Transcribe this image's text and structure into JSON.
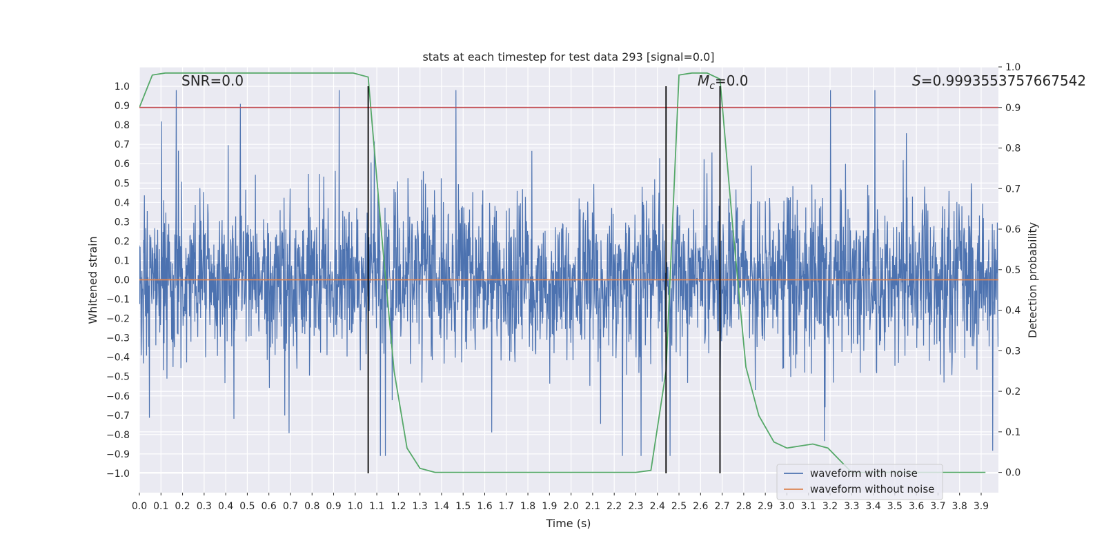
{
  "chart_data": {
    "type": "line",
    "title": "stats at each timestep for test data 293 [signal=0.0]",
    "xlabel": "Time (s)",
    "ylabel": "Whitened strain",
    "y2label": "Detection probability",
    "xlim": [
      0.0,
      3.98
    ],
    "ylim": [
      -1.1,
      1.1
    ],
    "y2lim": [
      -0.05,
      1.0
    ],
    "x_ticks": [
      0.0,
      0.1,
      0.2,
      0.3,
      0.4,
      0.5,
      0.6,
      0.7,
      0.8,
      0.9,
      1.0,
      1.1,
      1.2,
      1.3,
      1.4,
      1.5,
      1.6,
      1.7,
      1.8,
      1.9,
      2.0,
      2.1,
      2.2,
      2.3,
      2.4,
      2.5,
      2.6,
      2.7,
      2.8,
      2.9,
      3.0,
      3.1,
      3.2,
      3.3,
      3.4,
      3.5,
      3.6,
      3.7,
      3.8,
      3.9
    ],
    "x_tick_labels": [
      "0.0",
      "0.1",
      "0.2",
      "0.3",
      "0.4",
      "0.5",
      "0.6",
      "0.7",
      "0.8",
      "0.9",
      "1.0",
      "1.1",
      "1.2",
      "1.3",
      "1.4",
      "1.5",
      "1.6",
      "1.7",
      "1.8",
      "1.9",
      "2.0",
      "2.1",
      "2.2",
      "2.3",
      "2.4",
      "2.5",
      "2.6",
      "2.7",
      "2.8",
      "2.9",
      "3.0",
      "3.1",
      "3.2",
      "3.3",
      "3.4",
      "3.5",
      "3.6",
      "3.7",
      "3.8",
      "3.9"
    ],
    "y_ticks": [
      1.0,
      0.9,
      0.8,
      0.7,
      0.6,
      0.5,
      0.4,
      0.3,
      0.2,
      0.1,
      0.0,
      -0.1,
      -0.2,
      -0.3,
      -0.4,
      -0.5,
      -0.6,
      -0.7,
      -0.8,
      -0.9,
      -1.0
    ],
    "y_tick_labels": [
      "1.0",
      "0.9",
      "0.8",
      "0.7",
      "0.6",
      "0.5",
      "0.4",
      "0.3",
      "0.2",
      "0.1",
      "0.0",
      "−0.1",
      "−0.2",
      "−0.3",
      "−0.4",
      "−0.5",
      "−0.6",
      "−0.7",
      "−0.8",
      "−0.9",
      "−1.0"
    ],
    "y2_ticks": [
      1.0,
      0.9,
      0.8,
      0.7,
      0.6,
      0.5,
      0.4,
      0.3,
      0.2,
      0.1,
      0.0
    ],
    "y2_tick_labels": [
      "1.0",
      "0.9",
      "0.8",
      "0.7",
      "0.6",
      "0.5",
      "0.4",
      "0.3",
      "0.2",
      "0.1",
      "0.0"
    ],
    "annotations": {
      "snr": "SNR=0.0",
      "mc_symbol": "M",
      "mc_subscript": "c",
      "mc_value": "=0.0",
      "s_symbol": "S",
      "s_value": "=0.9993553757667542"
    },
    "series": [
      {
        "name": "waveform with noise",
        "color": "#4c72b0",
        "axis": "left",
        "description": "noisy whitened strain, dense oscillation mostly within ±0.5 with spikes to about 0.98 and −0.91",
        "approx_range": [
          -0.91,
          0.98
        ]
      },
      {
        "name": "waveform without noise",
        "color": "#dd8452",
        "axis": "left",
        "x": [
          0.0,
          3.98
        ],
        "values": [
          0.0,
          0.0
        ]
      },
      {
        "name": "detection probability",
        "color": "#55a868",
        "axis": "right",
        "in_legend": false,
        "x": [
          0.0,
          0.06,
          0.12,
          0.18,
          0.5,
          0.99,
          1.06,
          1.12,
          1.18,
          1.24,
          1.3,
          1.37,
          1.6,
          2.0,
          2.3,
          2.37,
          2.44,
          2.5,
          2.56,
          2.63,
          2.69,
          2.75,
          2.81,
          2.87,
          2.94,
          3.0,
          3.06,
          3.12,
          3.19,
          3.3,
          3.6,
          3.92
        ],
        "values": [
          0.9,
          0.98,
          0.985,
          0.985,
          0.985,
          0.985,
          0.975,
          0.6,
          0.25,
          0.06,
          0.01,
          0.0,
          0.0,
          0.0,
          0.0,
          0.005,
          0.25,
          0.98,
          0.985,
          0.985,
          0.97,
          0.6,
          0.26,
          0.14,
          0.075,
          0.06,
          0.065,
          0.07,
          0.06,
          0.0,
          0.0,
          0.0
        ]
      },
      {
        "name": "threshold",
        "color": "#c44e52",
        "axis": "right",
        "in_legend": false,
        "x": [
          0.0,
          3.98
        ],
        "values": [
          0.9,
          0.9
        ]
      }
    ],
    "vertical_lines": [
      {
        "x": 1.06,
        "color": "#000000"
      },
      {
        "x": 2.44,
        "color": "#000000"
      },
      {
        "x": 2.69,
        "color": "#000000"
      }
    ],
    "legend": {
      "placement": "lower-right",
      "entries": [
        {
          "label": "waveform with noise",
          "color": "#4c72b0"
        },
        {
          "label": "waveform without noise",
          "color": "#dd8452"
        }
      ]
    },
    "grid": true,
    "background": "#eaeaf2"
  }
}
